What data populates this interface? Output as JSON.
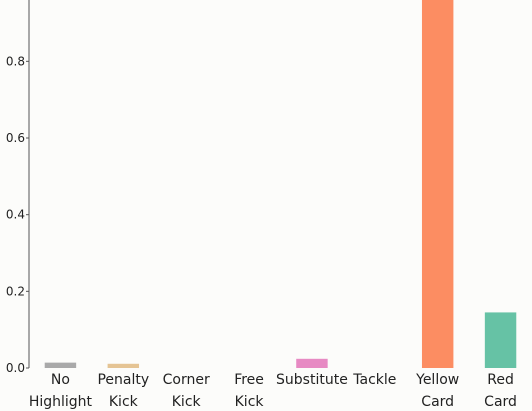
{
  "chart_data": {
    "type": "bar",
    "categories": [
      [
        "No",
        "Highlight"
      ],
      [
        "Penalty",
        "Kick"
      ],
      [
        "Corner",
        "Kick"
      ],
      [
        "Free",
        "Kick"
      ],
      [
        "Substitute"
      ],
      [
        "Tackle"
      ],
      [
        "Yellow",
        "Card"
      ],
      [
        "Red",
        "Card"
      ]
    ],
    "values": [
      0.014,
      0.011,
      0.0,
      0.0,
      0.024,
      0.0,
      1.0,
      0.145
    ],
    "colors": [
      "#a9a9a9",
      "#e5c494",
      "#c8c8c8",
      "#c8c8c8",
      "#e78ac3",
      "#c8c8c8",
      "#fc8d62",
      "#66c2a5"
    ],
    "yticks": [
      "0.0",
      "0.2",
      "0.4",
      "0.6",
      "0.8"
    ],
    "ylim": [
      0,
      0.96
    ],
    "title": "",
    "xlabel": "",
    "ylabel": "",
    "grid": false,
    "legend": "none"
  }
}
